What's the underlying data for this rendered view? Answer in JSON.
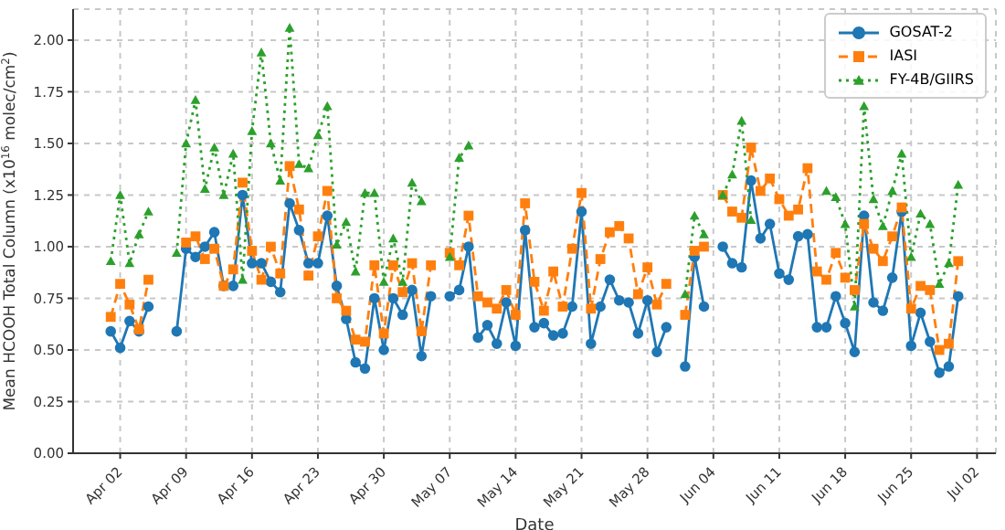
{
  "chart_data": {
    "type": "line",
    "xlabel": "Date",
    "ylabel": "Mean HCOOH Total Column (x10$^{16}$ molec/cm$^{2}$)",
    "x": [
      "--04-01",
      "--04-02",
      "--04-03",
      "--04-04",
      "--04-05",
      "--04-06",
      "--04-07",
      "--04-08",
      "--04-09",
      "--04-10",
      "--04-11",
      "--04-12",
      "--04-13",
      "--04-14",
      "--04-15",
      "--04-16",
      "--04-17",
      "--04-18",
      "--04-19",
      "--04-20",
      "--04-21",
      "--04-22",
      "--04-23",
      "--04-24",
      "--04-25",
      "--04-26",
      "--04-27",
      "--04-28",
      "--04-29",
      "--04-30",
      "--05-01",
      "--05-02",
      "--05-03",
      "--05-04",
      "--05-05",
      "--05-06",
      "--05-07",
      "--05-08",
      "--05-09",
      "--05-10",
      "--05-11",
      "--05-12",
      "--05-13",
      "--05-14",
      "--05-15",
      "--05-16",
      "--05-17",
      "--05-18",
      "--05-19",
      "--05-20",
      "--05-21",
      "--05-22",
      "--05-23",
      "--05-24",
      "--05-25",
      "--05-26",
      "--05-27",
      "--05-28",
      "--05-29",
      "--05-30",
      "--05-31",
      "--06-01",
      "--06-02",
      "--06-03",
      "--06-04",
      "--06-05",
      "--06-06",
      "--06-07",
      "--06-08",
      "--06-09",
      "--06-10",
      "--06-11",
      "--06-12",
      "--06-13",
      "--06-14",
      "--06-15",
      "--06-16",
      "--06-17",
      "--06-18",
      "--06-19",
      "--06-20",
      "--06-21",
      "--06-22",
      "--06-23",
      "--06-24",
      "--06-25",
      "--06-26",
      "--06-27",
      "--06-28",
      "--06-29",
      "--06-30"
    ],
    "series": [
      {
        "name": "GOSAT-2",
        "color": "#1f77b4",
        "marker": "circle",
        "line_style": "solid",
        "values": [
          0.59,
          0.51,
          0.64,
          0.59,
          0.71,
          null,
          null,
          0.59,
          0.99,
          0.95,
          1.0,
          1.07,
          0.81,
          0.81,
          1.25,
          0.92,
          0.92,
          0.83,
          0.78,
          1.21,
          1.08,
          0.92,
          0.92,
          1.15,
          0.81,
          0.65,
          0.44,
          0.41,
          0.75,
          0.5,
          0.75,
          0.67,
          0.79,
          0.47,
          0.76,
          null,
          0.76,
          0.79,
          1.0,
          0.56,
          0.62,
          0.53,
          0.73,
          0.52,
          1.08,
          0.61,
          0.63,
          0.57,
          0.58,
          0.71,
          1.17,
          0.53,
          0.71,
          0.84,
          0.74,
          0.73,
          0.58,
          0.74,
          0.49,
          0.61,
          null,
          0.42,
          0.95,
          0.71,
          null,
          1.0,
          0.92,
          0.9,
          1.32,
          1.04,
          1.11,
          0.87,
          0.84,
          1.05,
          1.06,
          0.61,
          0.61,
          0.76,
          0.63,
          0.49,
          1.15,
          0.73,
          0.69,
          0.85,
          1.17,
          0.52,
          0.68,
          0.54,
          0.39,
          0.42,
          0.76
        ]
      },
      {
        "name": "IASI",
        "color": "#ff7f0e",
        "marker": "square",
        "line_style": "dashed",
        "values": [
          0.66,
          0.82,
          0.72,
          0.6,
          0.84,
          null,
          null,
          null,
          1.02,
          1.05,
          0.94,
          0.99,
          0.81,
          0.89,
          1.31,
          0.98,
          0.84,
          1.0,
          0.87,
          1.39,
          1.18,
          0.86,
          1.05,
          1.27,
          0.75,
          0.69,
          0.55,
          0.54,
          0.91,
          0.58,
          0.91,
          0.78,
          0.92,
          0.59,
          0.91,
          null,
          0.97,
          0.91,
          1.15,
          0.76,
          0.73,
          0.7,
          0.79,
          0.67,
          1.21,
          0.83,
          0.69,
          0.88,
          0.71,
          0.99,
          1.26,
          0.7,
          0.94,
          1.07,
          1.1,
          1.04,
          0.77,
          0.9,
          0.72,
          0.82,
          null,
          0.67,
          0.98,
          1.0,
          null,
          1.25,
          1.17,
          1.14,
          1.48,
          1.27,
          1.33,
          1.23,
          1.15,
          1.18,
          1.38,
          0.88,
          0.84,
          0.97,
          0.85,
          0.79,
          1.11,
          0.99,
          0.93,
          1.05,
          1.19,
          0.7,
          0.81,
          0.79,
          0.5,
          0.53,
          0.93
        ]
      },
      {
        "name": "FY-4B/GIIRS",
        "color": "#2ca02c",
        "marker": "triangle",
        "line_style": "dotted",
        "values": [
          0.93,
          1.25,
          0.92,
          1.06,
          1.17,
          null,
          null,
          0.97,
          1.5,
          1.71,
          1.28,
          1.48,
          1.25,
          1.45,
          0.84,
          1.56,
          1.94,
          1.5,
          1.32,
          2.06,
          1.4,
          1.38,
          1.54,
          1.68,
          1.01,
          1.12,
          0.88,
          1.26,
          1.26,
          0.83,
          1.04,
          0.83,
          1.31,
          1.22,
          null,
          null,
          0.95,
          1.43,
          1.49,
          null,
          null,
          null,
          null,
          null,
          null,
          null,
          null,
          null,
          null,
          null,
          null,
          null,
          null,
          null,
          null,
          null,
          null,
          null,
          null,
          null,
          null,
          0.77,
          1.15,
          1.06,
          null,
          1.25,
          1.35,
          1.61,
          1.13,
          null,
          null,
          null,
          null,
          null,
          null,
          null,
          1.27,
          1.24,
          1.11,
          0.71,
          1.68,
          1.23,
          1.1,
          1.27,
          1.45,
          0.95,
          1.16,
          1.11,
          0.82,
          0.92,
          1.3
        ]
      }
    ],
    "xlim": [
      "--03-28",
      "--07-04"
    ],
    "xticks": [
      {
        "value": "--04-02",
        "label": "Apr 02"
      },
      {
        "value": "--04-09",
        "label": "Apr 09"
      },
      {
        "value": "--04-16",
        "label": "Apr 16"
      },
      {
        "value": "--04-23",
        "label": "Apr 23"
      },
      {
        "value": "--04-30",
        "label": "Apr 30"
      },
      {
        "value": "--05-07",
        "label": "May 07"
      },
      {
        "value": "--05-14",
        "label": "May 14"
      },
      {
        "value": "--05-21",
        "label": "May 21"
      },
      {
        "value": "--05-28",
        "label": "May 28"
      },
      {
        "value": "--06-04",
        "label": "Jun 04"
      },
      {
        "value": "--06-11",
        "label": "Jun 11"
      },
      {
        "value": "--06-18",
        "label": "Jun 18"
      },
      {
        "value": "--06-25",
        "label": "Jun 25"
      },
      {
        "value": "--07-02",
        "label": "Jul 02"
      }
    ],
    "ylim": [
      0,
      2.15
    ],
    "yticks": [
      {
        "value": 0,
        "label": "0.00"
      },
      {
        "value": 0.25,
        "label": "0.25"
      },
      {
        "value": 0.5,
        "label": "0.50"
      },
      {
        "value": 0.75,
        "label": "0.75"
      },
      {
        "value": 1,
        "label": "1.00"
      },
      {
        "value": 1.25,
        "label": "1.25"
      },
      {
        "value": 1.5,
        "label": "1.50"
      },
      {
        "value": 1.75,
        "label": "1.75"
      },
      {
        "value": 2,
        "label": "2.00"
      }
    ],
    "grid": true,
    "legend": "top right"
  }
}
